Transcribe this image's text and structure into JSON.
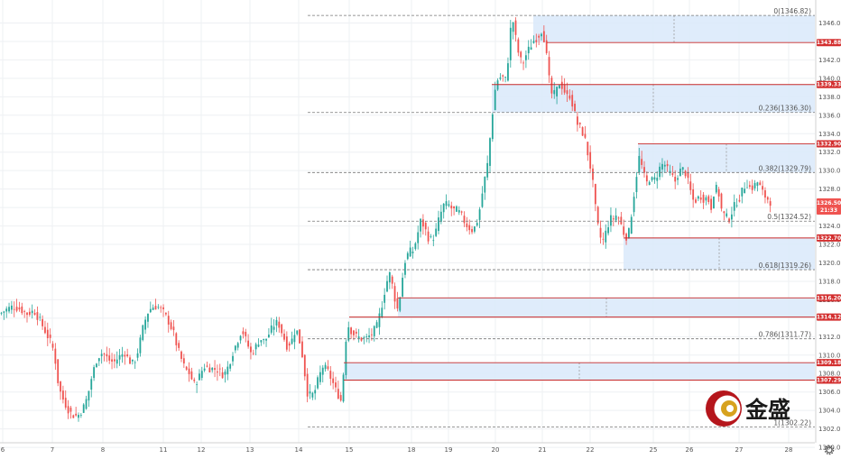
{
  "chart_data": {
    "type": "candlestick",
    "x_tick_labels": [
      "6",
      "7",
      "8",
      "11",
      "12",
      "13",
      "14",
      "15",
      "18",
      "19",
      "20",
      "21",
      "22",
      "25",
      "26",
      "27",
      "28"
    ],
    "y_ticks": [
      1300,
      1302,
      1304,
      1306,
      1308,
      1310,
      1312,
      1314,
      1316,
      1318,
      1320,
      1322,
      1324,
      1326,
      1328,
      1330,
      1332,
      1334,
      1336,
      1338,
      1340,
      1342,
      1344,
      1346
    ],
    "ylim": [
      1299.5,
      1347.4
    ],
    "grid": true,
    "fib_levels": [
      {
        "label": "0(1346.82)",
        "value": 1346.82
      },
      {
        "label": "0.236(1336.30)",
        "value": 1336.3
      },
      {
        "label": "0.382(1329.79)",
        "value": 1329.79
      },
      {
        "label": "0.5(1324.52)",
        "value": 1324.52
      },
      {
        "label": "0.618(1319.26)",
        "value": 1319.26
      },
      {
        "label": "0.786(1311.77)",
        "value": 1311.77
      },
      {
        "label": "1(1302.22)",
        "value": 1302.22
      }
    ],
    "price_tags": [
      {
        "label": "1343.88",
        "value": 1343.88
      },
      {
        "label": "1339.33",
        "value": 1339.33
      },
      {
        "label": "1332.90",
        "value": 1332.9
      },
      {
        "label": "1322.70",
        "value": 1322.7
      },
      {
        "label": "1316.20",
        "value": 1316.2
      },
      {
        "label": "1314.12",
        "value": 1314.12
      },
      {
        "label": "1309.18",
        "value": 1309.18
      },
      {
        "label": "1307.29",
        "value": 1307.29
      }
    ],
    "current_price": {
      "label": "1326.50",
      "value": 1326.5,
      "countdown": "21:33"
    },
    "zones": [
      {
        "top": 1346.82,
        "bottom": 1343.88
      },
      {
        "top": 1339.33,
        "bottom": 1336.3
      },
      {
        "top": 1332.9,
        "bottom": 1329.79
      },
      {
        "top": 1322.7,
        "bottom": 1319.26
      },
      {
        "top": 1316.2,
        "bottom": 1314.12
      },
      {
        "top": 1309.18,
        "bottom": 1307.29
      }
    ],
    "price_path": [
      [
        0,
        1314.5
      ],
      [
        8,
        1315.0
      ],
      [
        15,
        1315.3
      ],
      [
        22,
        1315.0
      ],
      [
        30,
        1314.5
      ],
      [
        38,
        1314.8
      ],
      [
        45,
        1313.6
      ],
      [
        52,
        1312.2
      ],
      [
        58,
        1311.0
      ],
      [
        62,
        1309.0
      ],
      [
        65,
        1306.5
      ],
      [
        70,
        1305.2
      ],
      [
        75,
        1304.2
      ],
      [
        80,
        1303.5
      ],
      [
        86,
        1303.4
      ],
      [
        92,
        1304.2
      ],
      [
        97,
        1305.5
      ],
      [
        102,
        1307.8
      ],
      [
        108,
        1309.8
      ],
      [
        114,
        1310.3
      ],
      [
        120,
        1309.5
      ],
      [
        126,
        1309.2
      ],
      [
        132,
        1309.8
      ],
      [
        138,
        1310.3
      ],
      [
        143,
        1309.4
      ],
      [
        148,
        1309.0
      ],
      [
        153,
        1310.5
      ],
      [
        158,
        1312.8
      ],
      [
        163,
        1314.5
      ],
      [
        168,
        1315.2
      ],
      [
        174,
        1315.3
      ],
      [
        180,
        1314.8
      ],
      [
        186,
        1313.8
      ],
      [
        192,
        1312.5
      ],
      [
        196,
        1311.0
      ],
      [
        200,
        1309.8
      ],
      [
        205,
        1308.5
      ],
      [
        210,
        1308.0
      ],
      [
        215,
        1306.8
      ],
      [
        220,
        1307.5
      ],
      [
        226,
        1308.8
      ],
      [
        231,
        1308.6
      ],
      [
        236,
        1308.5
      ],
      [
        242,
        1308.4
      ],
      [
        248,
        1307.8
      ],
      [
        253,
        1308.8
      ],
      [
        258,
        1310.3
      ],
      [
        263,
        1311.5
      ],
      [
        268,
        1312.8
      ],
      [
        273,
        1311.5
      ],
      [
        278,
        1310.2
      ],
      [
        283,
        1310.8
      ],
      [
        288,
        1311.8
      ],
      [
        293,
        1311.5
      ],
      [
        298,
        1312.3
      ],
      [
        303,
        1313.2
      ],
      [
        308,
        1313.6
      ],
      [
        313,
        1312.3
      ],
      [
        318,
        1311.0
      ],
      [
        323,
        1311.5
      ],
      [
        328,
        1313.0
      ],
      [
        332,
        1311.5
      ],
      [
        336,
        1309.5
      ],
      [
        340,
        1306.0
      ],
      [
        344,
        1305.6
      ],
      [
        348,
        1305.8
      ],
      [
        353,
        1307.5
      ],
      [
        358,
        1308.8
      ],
      [
        363,
        1308.3
      ],
      [
        368,
        1307.2
      ],
      [
        372,
        1306.2
      ],
      [
        376,
        1305.5
      ],
      [
        379,
        1304.8
      ],
      [
        382,
        1311.0
      ],
      [
        386,
        1313.2
      ],
      [
        390,
        1312.5
      ],
      [
        395,
        1312.0
      ],
      [
        400,
        1311.8
      ],
      [
        406,
        1311.8
      ],
      [
        412,
        1312.3
      ],
      [
        418,
        1313.2
      ],
      [
        424,
        1315.8
      ],
      [
        428,
        1317.8
      ],
      [
        432,
        1318.8
      ],
      [
        436,
        1317.0
      ],
      [
        440,
        1314.8
      ],
      [
        444,
        1316.8
      ],
      [
        448,
        1320.0
      ],
      [
        453,
        1321.2
      ],
      [
        458,
        1321.3
      ],
      [
        462,
        1322.8
      ],
      [
        466,
        1324.5
      ],
      [
        470,
        1324.0
      ],
      [
        474,
        1322.8
      ],
      [
        478,
        1322.5
      ],
      [
        482,
        1323.0
      ],
      [
        487,
        1325.0
      ],
      [
        492,
        1326.3
      ],
      [
        497,
        1326.3
      ],
      [
        502,
        1325.7
      ],
      [
        507,
        1325.7
      ],
      [
        512,
        1325.0
      ],
      [
        516,
        1324.2
      ],
      [
        520,
        1323.8
      ],
      [
        524,
        1323.5
      ],
      [
        528,
        1324.2
      ],
      [
        532,
        1326.0
      ],
      [
        536,
        1328.5
      ],
      [
        540,
        1330.5
      ],
      [
        543,
        1333.5
      ],
      [
        546,
        1336.5
      ],
      [
        549,
        1339.0
      ],
      [
        552,
        1340.0
      ],
      [
        556,
        1340.2
      ],
      [
        560,
        1339.8
      ],
      [
        563,
        1342.0
      ],
      [
        566,
        1345.5
      ],
      [
        569,
        1346.2
      ],
      [
        572,
        1344.0
      ],
      [
        576,
        1342.0
      ],
      [
        580,
        1341.8
      ],
      [
        584,
        1342.8
      ],
      [
        588,
        1343.5
      ],
      [
        592,
        1344.2
      ],
      [
        596,
        1344.5
      ],
      [
        600,
        1345.2
      ],
      [
        604,
        1344.0
      ],
      [
        608,
        1340.2
      ],
      [
        612,
        1338.0
      ],
      [
        616,
        1338.5
      ],
      [
        620,
        1339.5
      ],
      [
        624,
        1339.0
      ],
      [
        628,
        1338.0
      ],
      [
        632,
        1338.2
      ],
      [
        636,
        1336.5
      ],
      [
        640,
        1335.0
      ],
      [
        644,
        1334.5
      ],
      [
        648,
        1333.5
      ],
      [
        652,
        1331.5
      ],
      [
        656,
        1329.5
      ],
      [
        660,
        1325.8
      ],
      [
        664,
        1323.0
      ],
      [
        668,
        1322.3
      ],
      [
        672,
        1323.5
      ],
      [
        676,
        1324.8
      ],
      [
        680,
        1324.8
      ],
      [
        684,
        1325.3
      ],
      [
        688,
        1324.2
      ],
      [
        692,
        1323.0
      ],
      [
        696,
        1322.7
      ],
      [
        700,
        1325.5
      ],
      [
        704,
        1328.5
      ],
      [
        708,
        1331.5
      ],
      [
        712,
        1330.2
      ],
      [
        716,
        1328.5
      ],
      [
        720,
        1329.2
      ],
      [
        724,
        1328.8
      ],
      [
        728,
        1329.5
      ],
      [
        732,
        1330.5
      ],
      [
        736,
        1330.8
      ],
      [
        740,
        1330.0
      ],
      [
        744,
        1329.5
      ],
      [
        748,
        1328.8
      ],
      [
        752,
        1329.8
      ],
      [
        756,
        1330.2
      ],
      [
        760,
        1329.7
      ],
      [
        764,
        1328.2
      ],
      [
        768,
        1326.8
      ],
      [
        772,
        1326.8
      ],
      [
        776,
        1327.3
      ],
      [
        780,
        1326.9
      ],
      [
        784,
        1327.1
      ],
      [
        788,
        1326.0
      ],
      [
        792,
        1328.2
      ],
      [
        796,
        1327.8
      ],
      [
        800,
        1325.5
      ],
      [
        804,
        1325.0
      ],
      [
        808,
        1324.8
      ],
      [
        812,
        1325.8
      ],
      [
        816,
        1326.6
      ],
      [
        820,
        1327.1
      ],
      [
        824,
        1328.2
      ],
      [
        828,
        1328.6
      ],
      [
        832,
        1328.0
      ],
      [
        836,
        1328.4
      ],
      [
        840,
        1328.8
      ],
      [
        844,
        1327.8
      ],
      [
        848,
        1327.2
      ],
      [
        852,
        1326.8
      ],
      [
        855,
        1326.5
      ]
    ]
  },
  "branding": {
    "logo_text": "金盛"
  }
}
